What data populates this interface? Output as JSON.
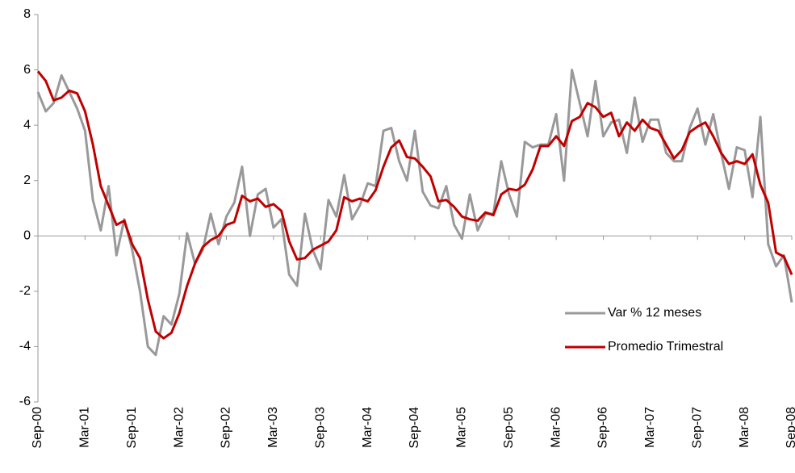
{
  "chart_data": {
    "type": "line",
    "categories": [
      "Sep-00",
      null,
      null,
      null,
      null,
      null,
      "Mar-01",
      null,
      null,
      null,
      null,
      null,
      "Sep-01",
      null,
      null,
      null,
      null,
      null,
      "Mar-02",
      null,
      null,
      null,
      null,
      null,
      "Sep-02",
      null,
      null,
      null,
      null,
      null,
      "Mar-03",
      null,
      null,
      null,
      null,
      null,
      "Sep-03",
      null,
      null,
      null,
      null,
      null,
      "Mar-04",
      null,
      null,
      null,
      null,
      null,
      "Sep-04",
      null,
      null,
      null,
      null,
      null,
      "Mar-05",
      null,
      null,
      null,
      null,
      null,
      "Sep-05",
      null,
      null,
      null,
      null,
      null,
      "Mar-06",
      null,
      null,
      null,
      null,
      null,
      "Sep-06",
      null,
      null,
      null,
      null,
      null,
      "Mar-07",
      null,
      null,
      null,
      null,
      null,
      "Sep-07",
      null,
      null,
      null,
      null,
      null,
      "Mar-08",
      null,
      null,
      null,
      null,
      null,
      "Sep-08"
    ],
    "series": [
      {
        "name": "Var % 12 meses",
        "color": "#999999",
        "values": [
          5.2,
          4.5,
          4.8,
          5.8,
          5.2,
          4.6,
          3.8,
          1.3,
          0.2,
          1.8,
          -0.7,
          0.6,
          -0.5,
          -2.0,
          -4.0,
          -4.3,
          -2.9,
          -3.2,
          -2.1,
          0.1,
          -1.0,
          -0.5,
          0.8,
          -0.3,
          0.7,
          1.2,
          2.5,
          0.0,
          1.5,
          1.7,
          0.3,
          0.6,
          -1.4,
          -1.8,
          0.8,
          -0.5,
          -1.2,
          1.3,
          0.7,
          2.2,
          0.6,
          1.1,
          1.9,
          1.8,
          3.8,
          3.9,
          2.7,
          2.0,
          3.8,
          1.6,
          1.1,
          1.0,
          1.8,
          0.4,
          -0.1,
          1.5,
          0.2,
          0.8,
          0.8,
          2.7,
          1.5,
          0.7,
          3.4,
          3.2,
          3.3,
          3.3,
          4.4,
          2.0,
          6.0,
          4.8,
          3.6,
          5.6,
          3.6,
          4.1,
          4.2,
          3.0,
          5.0,
          3.4,
          4.2,
          4.2,
          3.0,
          2.7,
          2.7,
          3.9,
          4.6,
          3.3,
          4.4,
          3.0,
          1.7,
          3.2,
          3.1,
          1.4,
          4.3,
          -0.3,
          -1.1,
          -0.7,
          -2.4
        ]
      },
      {
        "name": "Promedio Trimestral",
        "color": "#c00000",
        "values": [
          5.95,
          5.6,
          4.9,
          5.0,
          5.25,
          5.15,
          4.5,
          3.3,
          1.8,
          1.1,
          0.4,
          0.55,
          -0.3,
          -0.8,
          -2.3,
          -3.45,
          -3.7,
          -3.5,
          -2.8,
          -1.8,
          -1.0,
          -0.4,
          -0.15,
          0.0,
          0.4,
          0.5,
          1.45,
          1.25,
          1.35,
          1.05,
          1.15,
          0.9,
          -0.2,
          -0.85,
          -0.8,
          -0.5,
          -0.35,
          -0.2,
          0.2,
          1.4,
          1.25,
          1.35,
          1.25,
          1.65,
          2.5,
          3.2,
          3.45,
          2.85,
          2.8,
          2.5,
          2.15,
          1.25,
          1.3,
          1.05,
          0.7,
          0.6,
          0.55,
          0.85,
          0.75,
          1.5,
          1.7,
          1.65,
          1.85,
          2.4,
          3.25,
          3.25,
          3.6,
          3.25,
          4.15,
          4.3,
          4.8,
          4.65,
          4.3,
          4.45,
          3.6,
          4.1,
          3.8,
          4.2,
          3.9,
          3.8,
          3.3,
          2.8,
          3.1,
          3.75,
          3.95,
          4.1,
          3.6,
          3.0,
          2.6,
          2.7,
          2.6,
          2.95,
          1.85,
          1.2,
          -0.6,
          -0.75,
          -1.4
        ]
      }
    ],
    "ylim": [
      -6,
      8
    ],
    "yticks": [
      -6,
      -4,
      -2,
      0,
      2,
      4,
      6,
      8
    ],
    "legend": "lower right"
  }
}
